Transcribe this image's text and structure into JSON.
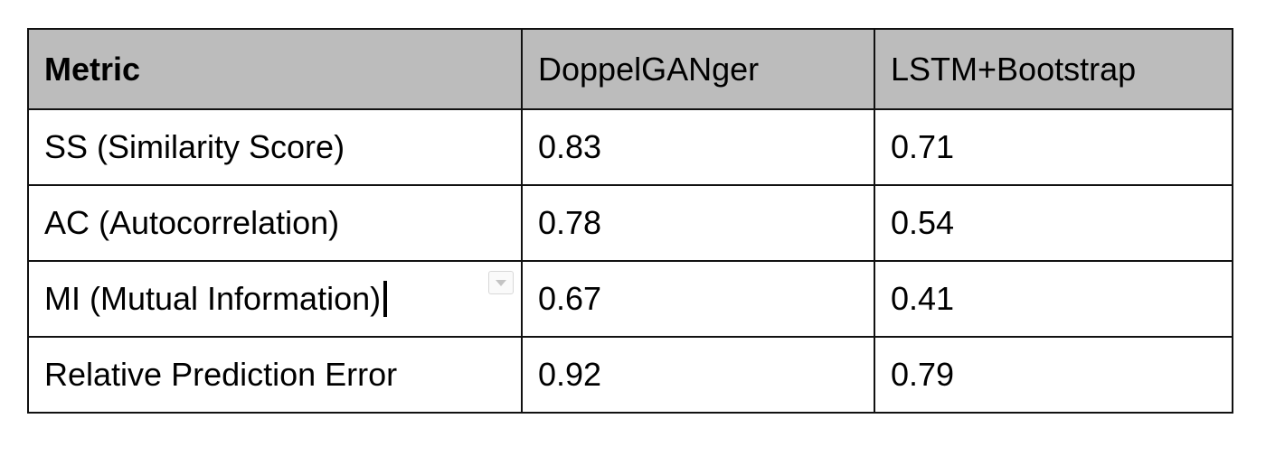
{
  "table": {
    "headers": [
      "Metric",
      "DoppelGANger",
      "LSTM+Bootstrap"
    ],
    "rows": [
      [
        "SS (Similarity Score)",
        "0.83",
        "0.71"
      ],
      [
        "AC (Autocorrelation)",
        "0.78",
        "0.54"
      ],
      [
        "MI (Mutual Information)",
        "0.67",
        "0.41"
      ],
      [
        "Relative Prediction Error",
        "0.92",
        "0.79"
      ]
    ]
  },
  "colors": {
    "header_background": "#bcbcbc",
    "border": "#111111"
  },
  "icons": {
    "cell_menu": "chevron-down-icon"
  }
}
